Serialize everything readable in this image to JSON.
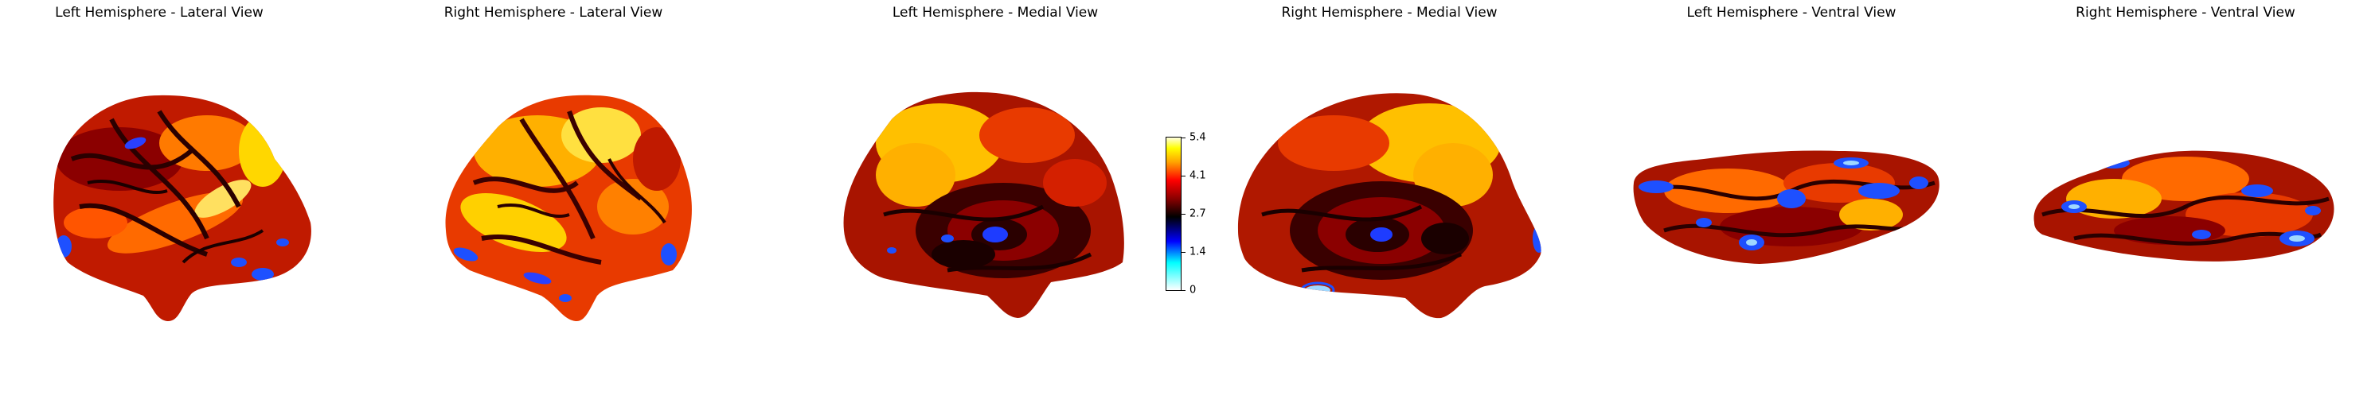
{
  "panels": [
    {
      "title": "Left Hemisphere - Lateral View"
    },
    {
      "title": "Right Hemisphere - Lateral View"
    },
    {
      "title": "Left Hemisphere - Medial View"
    },
    {
      "title": "Right Hemisphere - Medial View"
    },
    {
      "title": "Left Hemisphere - Ventral View"
    },
    {
      "title": "Right Hemisphere - Ventral View"
    }
  ],
  "colorbar": {
    "colormap": [
      "#ffffff",
      "#00ffff",
      "#0000ff",
      "#000000",
      "#8b0000",
      "#ff0000",
      "#ffa500",
      "#ffff00",
      "#ffffe0"
    ],
    "tick_labels": [
      "5.4",
      "4.1",
      "2.7",
      "1.4",
      "0"
    ],
    "range": [
      0,
      5.4
    ]
  },
  "colors": {
    "dark": "#1a0000",
    "deep_red": "#8b0000",
    "red": "#d41a00",
    "orange": "#ff7a00",
    "yellow": "#ffd700",
    "pale_yellow": "#ffff90",
    "blue": "#1e50ff",
    "cyan": "#9fd8ff"
  }
}
